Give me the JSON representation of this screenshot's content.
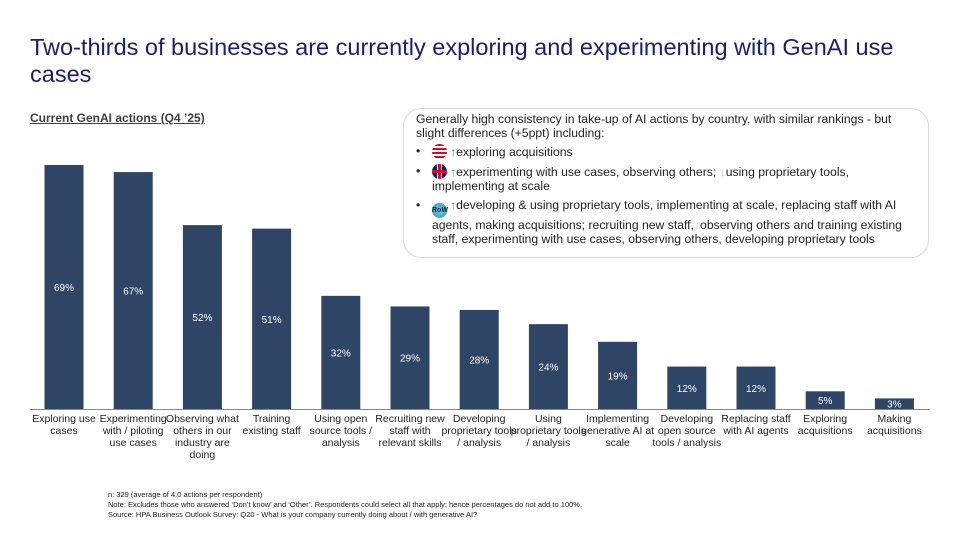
{
  "title": "Two-thirds of businesses are currently exploring and experimenting with GenAI use cases",
  "subtitle": "Current GenAI actions (Q4 ’25)",
  "callout": {
    "intro": "Generally high consistency in take-up of AI actions by country, with similar rankings - but slight differences (+5ppt) including:",
    "items": [
      {
        "flag": "us-flag",
        "up": "exploring acquisitions",
        "down": "",
        "tail": ""
      },
      {
        "flag": "uk-flag",
        "up": "experimenting with use cases, observing others;",
        "down": "using proprietary tools, implementing at scale",
        "tail": ""
      },
      {
        "flag": "row-globe",
        "flag_text": "RoW",
        "up": "developing & using proprietary tools, implementing at scale, replacing staff with AI agents, making acquisitions; recruiting new staff,",
        "down": "observing  others and training existing staff, experimenting with use cases, observing others, developing proprietary tools"
      }
    ],
    "up_color": "#1faa3f",
    "down_color": "#f0a8b0"
  },
  "chart_data": {
    "type": "bar",
    "categories": [
      "Exploring use cases",
      "Experimenting with / piloting use cases",
      "Observing what others in our industry are doing",
      "Training existing staff",
      "Using open source tools / analysis",
      "Recruiting new staff with relevant skills",
      "Developing proprietary tools / analysis",
      "Using proprietary tools / analysis",
      "Implementing generative AI at scale",
      "Developing open source tools / analysis",
      "Replacing staff with AI agents",
      "Exploring acquisitions",
      "Making acquisitions"
    ],
    "values": [
      69,
      67,
      52,
      51,
      32,
      29,
      28,
      24,
      19,
      12,
      12,
      5,
      3
    ],
    "labels": [
      "69%",
      "67%",
      "52%",
      "51%",
      "32%",
      "29%",
      "28%",
      "24%",
      "19%",
      "12%",
      "12%",
      "5%",
      "3%"
    ],
    "ylim": [
      0,
      70
    ],
    "bar_color": "#2f4566",
    "grid": false
  },
  "notes": [
    "n: 329 (average of 4.0 actions per respondent)",
    "Note: Excludes those who answered ‘Don’t know’ and ‘Other’. Respondents could select all that apply; hence percentages do not add to 100%.",
    "Source: HPA Business Outlook Survey: Q20 - What is your company currently doing about / with generative AI?"
  ]
}
